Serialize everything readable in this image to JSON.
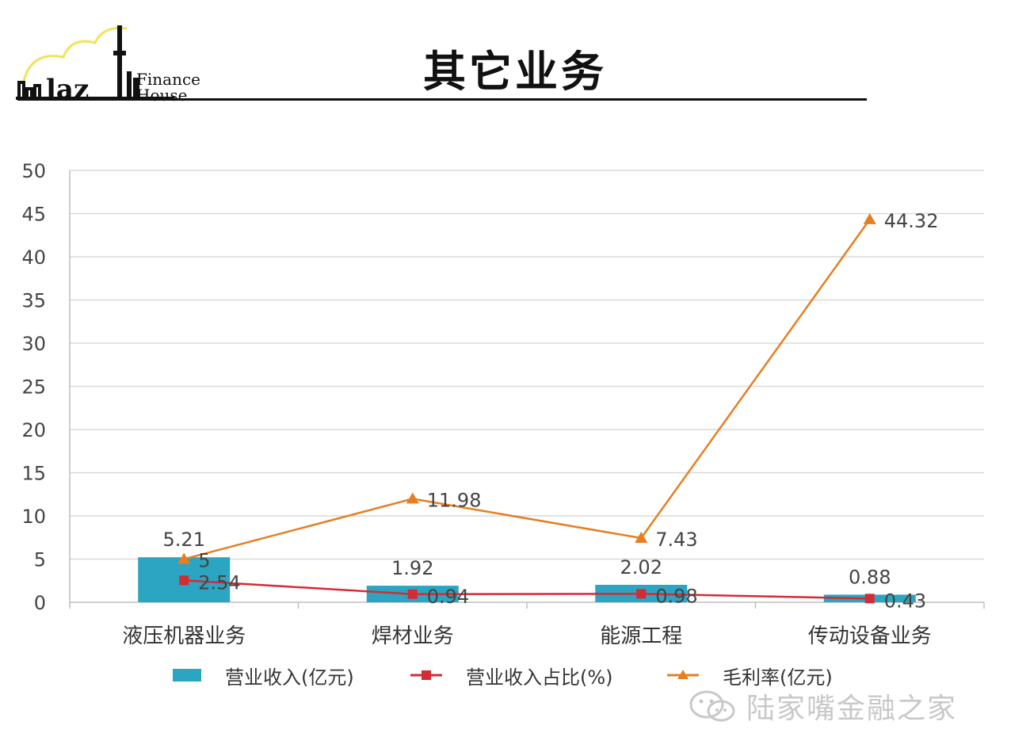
{
  "slide": {
    "title": "其它业务",
    "logo_text": "Finance\nHouse"
  },
  "watermark": {
    "text": "陆家嘴金融之家",
    "icon": "wechat-icon"
  },
  "colors": {
    "revenue": "#2BA5C2",
    "share": "#D52B34",
    "margin": "#E67E22",
    "grid": "#d9d9d9",
    "axis_text": "#444444"
  },
  "chart_data": {
    "type": "bar",
    "title": "",
    "xlabel": "",
    "ylabel": "",
    "ylim": [
      0,
      50
    ],
    "yticks": [
      0,
      5,
      10,
      15,
      20,
      25,
      30,
      35,
      40,
      45,
      50
    ],
    "grid": true,
    "legend_position": "bottom",
    "categories": [
      "液压机器业务",
      "焊材业务",
      "能源工程",
      "传动设备业务"
    ],
    "series": [
      {
        "name": "营业收入(亿元)",
        "kind": "bar",
        "values": [
          5.21,
          1.92,
          2.02,
          0.88
        ],
        "labels": [
          "5.21",
          "1.92",
          "2.02",
          "0.88"
        ]
      },
      {
        "name": "营业收入占比(%)",
        "kind": "line",
        "marker": "square",
        "values": [
          2.54,
          0.94,
          0.98,
          0.43
        ],
        "labels": [
          "2.54",
          "0.94",
          "0.98",
          "0.43"
        ]
      },
      {
        "name": "毛利率(亿元)",
        "kind": "line",
        "marker": "triangle",
        "values": [
          5,
          11.98,
          7.43,
          44.32
        ],
        "labels": [
          "5",
          "11.98",
          "7.43",
          "44.32"
        ]
      }
    ]
  }
}
